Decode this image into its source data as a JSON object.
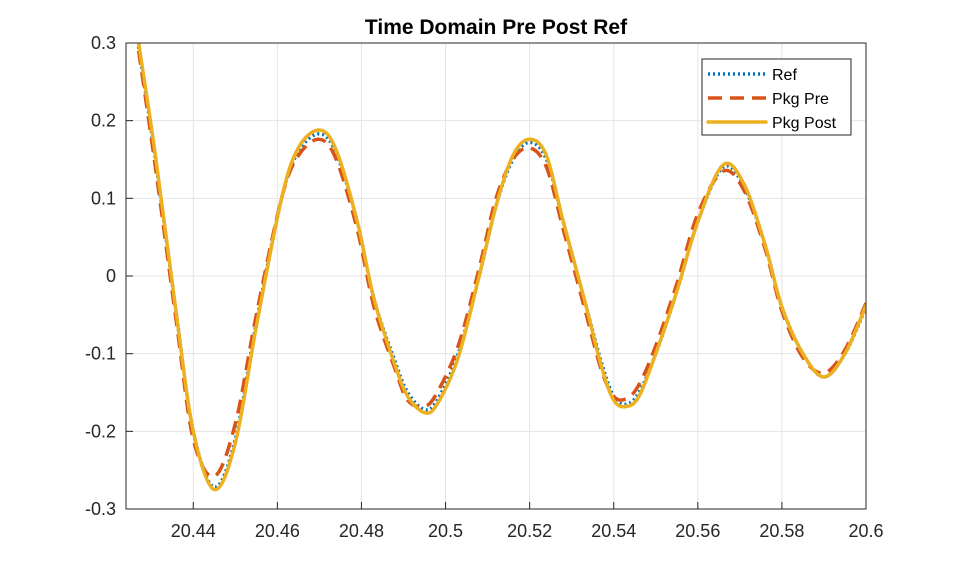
{
  "chart_data": {
    "type": "line",
    "title": "Time Domain Pre Post Ref",
    "xlabel": "",
    "ylabel": "",
    "xlim": [
      20.424,
      20.6
    ],
    "ylim": [
      -0.3,
      0.3
    ],
    "xticks": [
      20.44,
      20.46,
      20.48,
      20.5,
      20.52,
      20.54,
      20.56,
      20.58,
      20.6
    ],
    "xtick_labels": [
      "20.44",
      "20.46",
      "20.48",
      "20.5",
      "20.52",
      "20.54",
      "20.56",
      "20.58",
      "20.6"
    ],
    "yticks": [
      -0.3,
      -0.2,
      -0.1,
      0,
      0.1,
      0.2,
      0.3
    ],
    "ytick_labels": [
      "-0.3",
      "-0.2",
      "-0.1",
      "0",
      "0.1",
      "0.2",
      "0.3"
    ],
    "grid": true,
    "legend_position": "top-right",
    "series": [
      {
        "name": "Ref",
        "color": "#0072BD",
        "style": "dotted",
        "x": [
          20.427,
          20.431,
          20.436,
          20.44,
          20.445,
          20.45,
          20.455,
          20.461,
          20.465,
          20.47,
          20.474,
          20.479,
          20.483,
          20.488,
          20.491,
          20.495,
          20.498,
          20.503,
          20.508,
          20.512,
          20.516,
          20.52,
          20.524,
          20.528,
          20.533,
          20.537,
          20.54,
          20.543,
          20.546,
          20.55,
          20.555,
          20.56,
          20.566,
          20.571,
          20.576,
          20.58,
          20.585,
          20.59,
          20.595,
          20.6
        ],
        "values": [
          0.295,
          0.15,
          -0.05,
          -0.2,
          -0.272,
          -0.21,
          -0.06,
          0.1,
          0.16,
          0.183,
          0.158,
          0.07,
          -0.03,
          -0.11,
          -0.15,
          -0.172,
          -0.16,
          -0.1,
          0.0,
          0.09,
          0.15,
          0.172,
          0.15,
          0.07,
          -0.03,
          -0.11,
          -0.155,
          -0.165,
          -0.15,
          -0.1,
          -0.02,
          0.07,
          0.14,
          0.115,
          0.04,
          -0.04,
          -0.1,
          -0.13,
          -0.1,
          -0.04
        ]
      },
      {
        "name": "Pkg Pre",
        "color": "#D95319",
        "style": "dashed",
        "x": [
          20.427,
          20.431,
          20.436,
          20.44,
          20.445,
          20.45,
          20.455,
          20.461,
          20.465,
          20.47,
          20.474,
          20.479,
          20.483,
          20.488,
          20.491,
          20.495,
          20.498,
          20.503,
          20.508,
          20.512,
          20.516,
          20.52,
          20.524,
          20.528,
          20.533,
          20.537,
          20.54,
          20.543,
          20.546,
          20.55,
          20.555,
          20.56,
          20.566,
          20.571,
          20.576,
          20.58,
          20.585,
          20.59,
          20.595,
          20.6
        ],
        "values": [
          0.29,
          0.14,
          -0.06,
          -0.21,
          -0.258,
          -0.19,
          -0.05,
          0.1,
          0.155,
          0.176,
          0.15,
          0.06,
          -0.04,
          -0.12,
          -0.16,
          -0.168,
          -0.15,
          -0.09,
          0.01,
          0.1,
          0.15,
          0.165,
          0.14,
          0.06,
          -0.04,
          -0.12,
          -0.155,
          -0.158,
          -0.14,
          -0.09,
          -0.01,
          0.08,
          0.135,
          0.11,
          0.035,
          -0.045,
          -0.105,
          -0.125,
          -0.095,
          -0.035
        ]
      },
      {
        "name": "Pkg Post",
        "color": "#EDB120",
        "style": "solid",
        "x": [
          20.427,
          20.431,
          20.436,
          20.44,
          20.445,
          20.45,
          20.455,
          20.461,
          20.465,
          20.47,
          20.474,
          20.479,
          20.483,
          20.488,
          20.491,
          20.495,
          20.498,
          20.503,
          20.508,
          20.512,
          20.516,
          20.52,
          20.524,
          20.528,
          20.533,
          20.537,
          20.54,
          20.543,
          20.546,
          20.55,
          20.555,
          20.56,
          20.566,
          20.571,
          20.576,
          20.58,
          20.585,
          20.59,
          20.595,
          20.6
        ],
        "values": [
          0.3,
          0.155,
          -0.05,
          -0.2,
          -0.275,
          -0.215,
          -0.065,
          0.1,
          0.165,
          0.188,
          0.162,
          0.07,
          -0.03,
          -0.115,
          -0.155,
          -0.176,
          -0.165,
          -0.105,
          0.0,
          0.09,
          0.155,
          0.176,
          0.155,
          0.07,
          -0.03,
          -0.115,
          -0.16,
          -0.168,
          -0.155,
          -0.1,
          -0.02,
          0.07,
          0.143,
          0.118,
          0.04,
          -0.04,
          -0.1,
          -0.13,
          -0.1,
          -0.038
        ]
      }
    ]
  }
}
